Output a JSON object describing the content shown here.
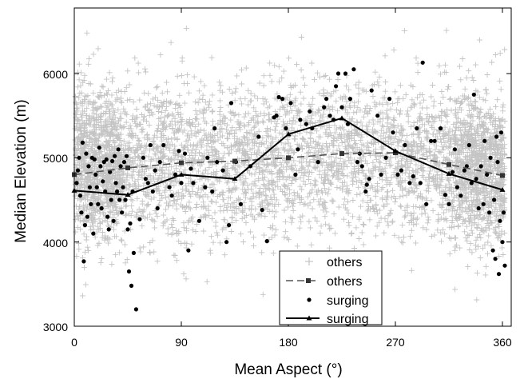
{
  "chart_data": {
    "type": "scatter",
    "xlabel": "Mean Aspect (°)",
    "ylabel": "Median Elevation (m)",
    "xlim": [
      0,
      370
    ],
    "ylim": [
      3000,
      6600
    ],
    "x_ticks": [
      "0",
      "90",
      "180",
      "270",
      "360"
    ],
    "y_ticks": [
      "3000",
      "4000",
      "5000",
      "6000"
    ],
    "legend": {
      "position": "bottom-center",
      "entries": [
        "others",
        "others",
        "surging",
        "surging"
      ]
    },
    "colors": {
      "others_points": "#c4c4c4",
      "others_line": "#555555",
      "surging": "#000000"
    },
    "series": [
      {
        "name": "others",
        "kind": "scatter-cloud",
        "marker": "plus",
        "description_points": [
          [
            0,
            5100
          ],
          [
            45,
            5150
          ],
          [
            90,
            5100
          ],
          [
            135,
            5050
          ],
          [
            180,
            5150
          ],
          [
            225,
            5200
          ],
          [
            270,
            5100
          ],
          [
            315,
            5150
          ],
          [
            360,
            5100
          ]
        ],
        "band_center": [
          [
            0,
            4950
          ],
          [
            45,
            4950
          ],
          [
            90,
            4950
          ],
          [
            135,
            4950
          ],
          [
            180,
            5000
          ],
          [
            225,
            5050
          ],
          [
            270,
            5000
          ],
          [
            315,
            4950
          ],
          [
            360,
            4850
          ]
        ],
        "band_spread": 420
      },
      {
        "name": "others",
        "kind": "line",
        "marker": "square",
        "x": [
          0,
          45,
          90,
          135,
          180,
          225,
          270,
          315,
          360
        ],
        "y": [
          4800,
          4880,
          4940,
          4960,
          5000,
          5050,
          5060,
          4920,
          4790
        ]
      },
      {
        "name": "surging",
        "kind": "scatter",
        "marker": "circle",
        "points": [
          [
            2,
            4700
          ],
          [
            3,
            4850
          ],
          [
            4,
            5000
          ],
          [
            5,
            4550
          ],
          [
            6,
            4350
          ],
          [
            7,
            5180
          ],
          [
            8,
            3770
          ],
          [
            9,
            4200
          ],
          [
            10,
            5050
          ],
          [
            11,
            4300
          ],
          [
            12,
            4900
          ],
          [
            13,
            4650
          ],
          [
            14,
            4450
          ],
          [
            15,
            5000
          ],
          [
            16,
            4100
          ],
          [
            17,
            4980
          ],
          [
            18,
            4800
          ],
          [
            19,
            4650
          ],
          [
            20,
            4450
          ],
          [
            21,
            5120
          ],
          [
            22,
            4900
          ],
          [
            23,
            4400
          ],
          [
            24,
            4720
          ],
          [
            25,
            4950
          ],
          [
            26,
            4600
          ],
          [
            27,
            4980
          ],
          [
            28,
            4300
          ],
          [
            29,
            4150
          ],
          [
            30,
            4830
          ],
          [
            31,
            4500
          ],
          [
            32,
            4960
          ],
          [
            33,
            4250
          ],
          [
            34,
            5020
          ],
          [
            35,
            4700
          ],
          [
            36,
            4600
          ],
          [
            37,
            5100
          ],
          [
            38,
            4500
          ],
          [
            39,
            4900
          ],
          [
            40,
            4350
          ],
          [
            41,
            4650
          ],
          [
            42,
            4950
          ],
          [
            43,
            4500
          ],
          [
            44,
            5020
          ],
          [
            45,
            4150
          ],
          [
            46,
            3650
          ],
          [
            47,
            4220
          ],
          [
            48,
            3480
          ],
          [
            49,
            4600
          ],
          [
            50,
            3870
          ],
          [
            52,
            3200
          ],
          [
            55,
            4270
          ],
          [
            58,
            5000
          ],
          [
            60,
            4750
          ],
          [
            62,
            4700
          ],
          [
            64,
            5150
          ],
          [
            66,
            4600
          ],
          [
            68,
            4850
          ],
          [
            70,
            4400
          ],
          [
            72,
            4950
          ],
          [
            75,
            5150
          ],
          [
            80,
            4650
          ],
          [
            82,
            4550
          ],
          [
            85,
            4800
          ],
          [
            88,
            5080
          ],
          [
            90,
            4700
          ],
          [
            93,
            5050
          ],
          [
            96,
            3900
          ],
          [
            98,
            4870
          ],
          [
            100,
            4700
          ],
          [
            105,
            4250
          ],
          [
            110,
            4650
          ],
          [
            112,
            5000
          ],
          [
            116,
            4600
          ],
          [
            118,
            5350
          ],
          [
            120,
            4950
          ],
          [
            125,
            4850
          ],
          [
            128,
            4000
          ],
          [
            130,
            4200
          ],
          [
            132,
            5650
          ],
          [
            136,
            4950
          ],
          [
            140,
            4450
          ],
          [
            148,
            4900
          ],
          [
            155,
            5250
          ],
          [
            158,
            4380
          ],
          [
            162,
            4010
          ],
          [
            168,
            5480
          ],
          [
            170,
            5500
          ],
          [
            172,
            5720
          ],
          [
            175,
            5700
          ],
          [
            178,
            5350
          ],
          [
            182,
            5650
          ],
          [
            186,
            4800
          ],
          [
            188,
            5100
          ],
          [
            190,
            5450
          ],
          [
            195,
            5400
          ],
          [
            198,
            5550
          ],
          [
            200,
            5350
          ],
          [
            205,
            4950
          ],
          [
            210,
            5600
          ],
          [
            212,
            5700
          ],
          [
            215,
            5500
          ],
          [
            218,
            5450
          ],
          [
            220,
            5850
          ],
          [
            222,
            6000
          ],
          [
            225,
            5600
          ],
          [
            228,
            6000
          ],
          [
            230,
            5400
          ],
          [
            232,
            5700
          ],
          [
            235,
            6050
          ],
          [
            238,
            4950
          ],
          [
            240,
            5050
          ],
          [
            242,
            4900
          ],
          [
            245,
            4600
          ],
          [
            246,
            4680
          ],
          [
            248,
            4750
          ],
          [
            250,
            5800
          ],
          [
            255,
            5500
          ],
          [
            258,
            4800
          ],
          [
            262,
            5000
          ],
          [
            265,
            5700
          ],
          [
            268,
            5300
          ],
          [
            272,
            4800
          ],
          [
            275,
            4850
          ],
          [
            278,
            5150
          ],
          [
            282,
            4700
          ],
          [
            285,
            4780
          ],
          [
            288,
            5350
          ],
          [
            291,
            4700
          ],
          [
            293,
            6130
          ],
          [
            296,
            4450
          ],
          [
            300,
            5200
          ],
          [
            303,
            5200
          ],
          [
            308,
            5350
          ],
          [
            312,
            4560
          ],
          [
            315,
            4450
          ],
          [
            318,
            4830
          ],
          [
            320,
            5100
          ],
          [
            322,
            4650
          ],
          [
            325,
            4550
          ],
          [
            328,
            4850
          ],
          [
            330,
            4900
          ],
          [
            332,
            5150
          ],
          [
            334,
            4700
          ],
          [
            336,
            5750
          ],
          [
            338,
            4750
          ],
          [
            340,
            4400
          ],
          [
            342,
            4900
          ],
          [
            344,
            4450
          ],
          [
            345,
            5200
          ],
          [
            347,
            4800
          ],
          [
            349,
            4350
          ],
          [
            350,
            5000
          ],
          [
            352,
            3900
          ],
          [
            353,
            4500
          ],
          [
            354,
            3800
          ],
          [
            355,
            5250
          ],
          [
            356,
            4950
          ],
          [
            357,
            3620
          ],
          [
            358,
            4250
          ],
          [
            359,
            5300
          ],
          [
            360,
            4000
          ],
          [
            361,
            4350
          ],
          [
            362,
            3720
          ]
        ]
      },
      {
        "name": "surging",
        "kind": "line",
        "marker": "triangle",
        "x": [
          0,
          45,
          90,
          135,
          180,
          225,
          270,
          315,
          360
        ],
        "y": [
          4610,
          4560,
          4800,
          4750,
          5280,
          5470,
          5080,
          4810,
          4620
        ]
      }
    ]
  }
}
